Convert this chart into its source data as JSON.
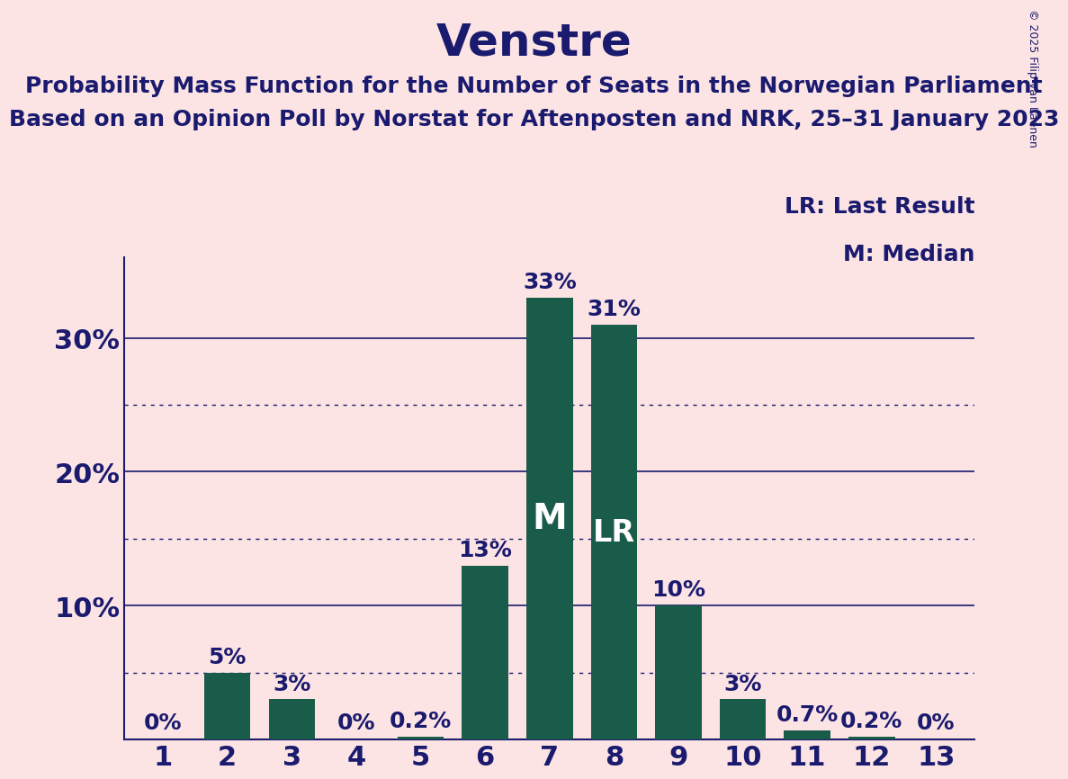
{
  "title": "Venstre",
  "subtitle1": "Probability Mass Function for the Number of Seats in the Norwegian Parliament",
  "subtitle2": "Based on an Opinion Poll by Norstat for Aftenposten and NRK, 25–31 January 2023",
  "copyright": "© 2025 Filip van Laenen",
  "categories": [
    1,
    2,
    3,
    4,
    5,
    6,
    7,
    8,
    9,
    10,
    11,
    12,
    13
  ],
  "values": [
    0.0,
    5.0,
    3.0,
    0.0,
    0.2,
    13.0,
    33.0,
    31.0,
    10.0,
    3.0,
    0.7,
    0.2,
    0.0
  ],
  "labels": [
    "0%",
    "5%",
    "3%",
    "0%",
    "0.2%",
    "13%",
    "33%",
    "31%",
    "10%",
    "3%",
    "0.7%",
    "0.2%",
    "0%"
  ],
  "bar_color": "#1a5c4a",
  "background_color": "#fce4e4",
  "title_color": "#1a1a6e",
  "axis_color": "#1a1a6e",
  "label_color": "#1a1a6e",
  "median_bar": 7,
  "last_result_bar": 8,
  "median_label": "M",
  "last_result_label": "LR",
  "median_label_color": "#ffffff",
  "legend_lr": "LR: Last Result",
  "legend_m": "M: Median",
  "ylim": [
    0,
    36
  ],
  "yticks": [
    10,
    20,
    30
  ],
  "ytick_labels": [
    "10%",
    "20%",
    "30%"
  ],
  "solid_grid": [
    10,
    20,
    30
  ],
  "dotted_grid": [
    5,
    15,
    25
  ],
  "title_fontsize": 36,
  "subtitle_fontsize": 18,
  "axis_label_fontsize": 22,
  "bar_label_fontsize": 18,
  "legend_fontsize": 18,
  "copyright_fontsize": 9,
  "median_inside_fontsize": 28,
  "lr_inside_fontsize": 24
}
